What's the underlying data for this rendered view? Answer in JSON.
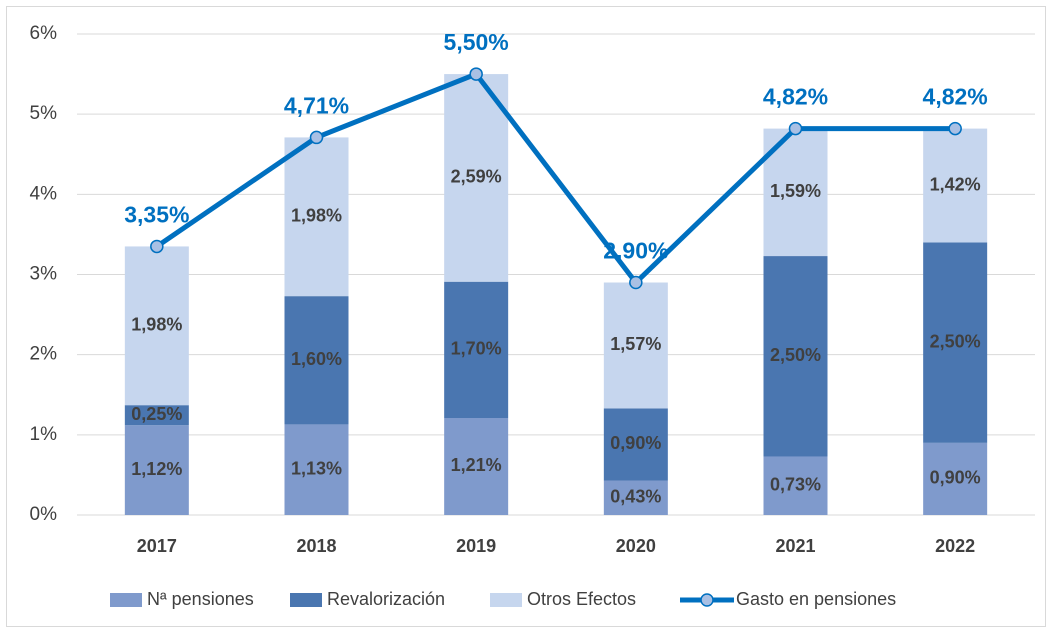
{
  "chart_data": {
    "type": "bar",
    "categories": [
      "2017",
      "2018",
      "2019",
      "2020",
      "2021",
      "2022"
    ],
    "stacked": true,
    "series": [
      {
        "name": "Nª pensiones",
        "color": "#7f9acc",
        "values": [
          1.12,
          1.13,
          1.21,
          0.43,
          0.73,
          0.9
        ],
        "value_labels": [
          "1,12%",
          "1,13%",
          "1,21%",
          "0,43%",
          "0,73%",
          "0,90%"
        ]
      },
      {
        "name": "Revalorización",
        "color": "#4a76b0",
        "values": [
          0.25,
          1.6,
          1.7,
          0.9,
          2.5,
          2.5
        ],
        "value_labels": [
          "0,25%",
          "1,60%",
          "1,70%",
          "0,90%",
          "2,50%",
          "2,50%"
        ]
      },
      {
        "name": "Otros Efectos",
        "color": "#c6d6ee",
        "values": [
          1.98,
          1.98,
          2.59,
          1.57,
          1.59,
          1.42
        ],
        "value_labels": [
          "1,98%",
          "1,98%",
          "2,59%",
          "1,57%",
          "1,59%",
          "1,42%"
        ]
      },
      {
        "name": "Gasto en pensiones",
        "type": "line",
        "color": "#0070c0",
        "values": [
          3.35,
          4.71,
          5.5,
          2.9,
          4.82,
          4.82
        ],
        "value_labels": [
          "3,35%",
          "4,71%",
          "5,50%",
          "2,90%",
          "4,82%",
          "4,82%"
        ]
      }
    ],
    "ylim": [
      0,
      6
    ],
    "yticks": [
      {
        "value": 0,
        "label": "0%"
      },
      {
        "value": 1,
        "label": "1%"
      },
      {
        "value": 2,
        "label": "2%"
      },
      {
        "value": 3,
        "label": "3%"
      },
      {
        "value": 4,
        "label": "4%"
      },
      {
        "value": 5,
        "label": "5%"
      },
      {
        "value": 6,
        "label": "6%"
      }
    ],
    "grid": true,
    "legend": "bottom"
  }
}
